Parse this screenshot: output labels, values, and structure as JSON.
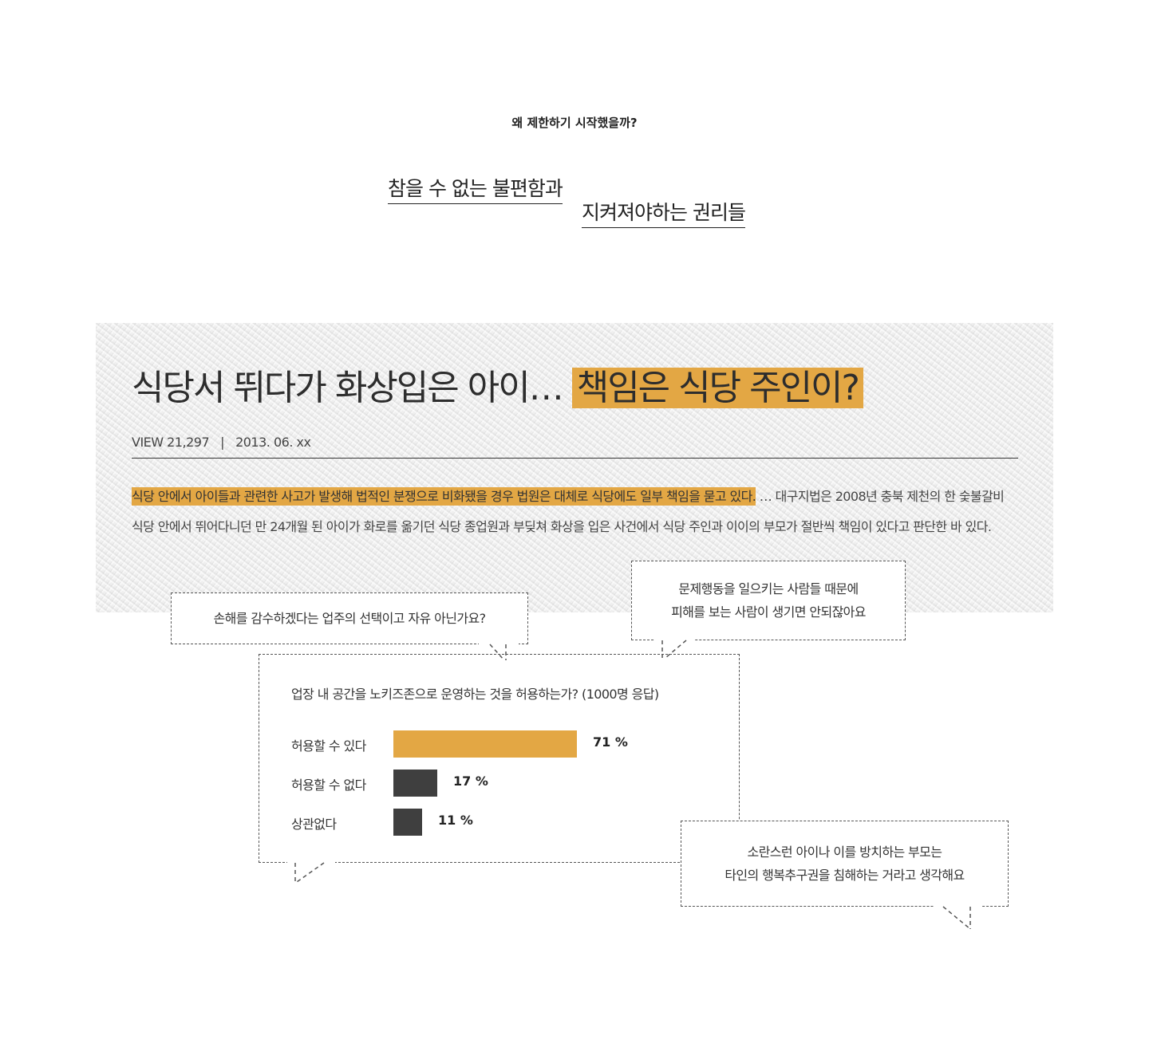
{
  "section": {
    "eyebrow": "왜 제한하기 시작했을까?",
    "headline_line1": "참을 수 없는 불편함과",
    "headline_line2": "지켜져야하는 권리들"
  },
  "article": {
    "title_plain": "식당서 뛰다가 화상입은 아이… ",
    "title_highlight": "책임은 식당 주인이?",
    "views": "VIEW 21,297",
    "separator": "|",
    "date": "2013. 06. xx",
    "body_highlight": "식당 안에서 아이들과 관련한 사고가 발생해 법적인 분쟁으로 비화됐을 경우 법원은 대체로 식당에도 일부 책임을 묻고 있다.",
    "body_rest": " … 대구지법은 2008년 충북 제천의 한 숯불갈비 식당 안에서 뛰어다니던 만 24개월 된 아이가 화로를 옮기던 식당 종업원과 부딪쳐 화상을 입은 사건에서 식당 주인과 이이의 부모가 절반씩 책임이 있다고 판단한 바 있다."
  },
  "bubbles": {
    "left": "손해를 감수하겠다는 업주의 선택이고 자유 아닌가요?",
    "right_line1": "문제행동을 일으키는 사람들 때문에",
    "right_line2": "피해를 보는 사람이 생기면 안되잖아요",
    "bottom_line1": "소란스런 아이나 이를 방치하는 부모는",
    "bottom_line2": "타인의 행복추구권을 침해하는 거라고 생각해요"
  },
  "poll": {
    "question": "업장 내 공간을 노키즈존으로 운영하는 것을 허용하는가? (1000명 응답)",
    "options": [
      {
        "label": "허용할 수 있다",
        "percent": 71,
        "display": "71 %",
        "color": "#e3a744"
      },
      {
        "label": "허용할 수 없다",
        "percent": 17,
        "display": "17 %",
        "color": "#3f3f3f"
      },
      {
        "label": "상관없다",
        "percent": 11,
        "display": "11 %",
        "color": "#3f3f3f"
      }
    ]
  },
  "colors": {
    "accent": "#e3a744",
    "dark_bar": "#3f3f3f",
    "text": "#333333"
  }
}
